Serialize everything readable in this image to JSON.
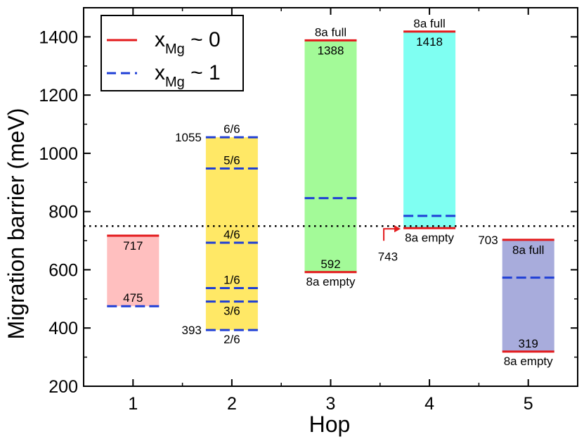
{
  "chart_data": {
    "type": "bar",
    "title": "",
    "xlabel": "Hop",
    "ylabel": "Migration barrier (meV)",
    "categories": [
      "1",
      "2",
      "3",
      "4",
      "5"
    ],
    "xlim": [
      0.5,
      5.5
    ],
    "ylim": [
      200,
      1500
    ],
    "yticks": [
      200,
      400,
      600,
      800,
      1000,
      1200,
      1400
    ],
    "reference_line": 750,
    "colors": {
      "x0_line": "#e31a1c",
      "x1_line": "#1f3fd6",
      "hop1": "#ffbfbf",
      "hop2": "#ffe866",
      "hop3": "#a3fa98",
      "hop4": "#7ffff2",
      "hop5": "#a8acdc"
    },
    "legend": {
      "position": "top-left",
      "entries": [
        {
          "label": "x",
          "sub": "Mg",
          "suffix": " ~ 0",
          "style": "solid"
        },
        {
          "label": "x",
          "sub": "Mg",
          "suffix": " ~ 1",
          "style": "dashed"
        }
      ]
    },
    "ranges": [
      {
        "hop": 1,
        "low": 475,
        "high": 717,
        "fill_key": "hop1"
      },
      {
        "hop": 2,
        "low": 393,
        "high": 1055,
        "fill_key": "hop2"
      },
      {
        "hop": 3,
        "low": 592,
        "high": 1388,
        "fill_key": "hop3"
      },
      {
        "hop": 4,
        "low": 743,
        "high": 1418,
        "fill_key": "hop4"
      },
      {
        "hop": 5,
        "low": 319,
        "high": 703,
        "fill_key": "hop5"
      }
    ],
    "series": [
      {
        "name": "x_Mg ~ 0",
        "style": "solid",
        "points": [
          {
            "hop": 1,
            "value": 717
          },
          {
            "hop": 3,
            "value": 1388
          },
          {
            "hop": 3,
            "value": 592
          },
          {
            "hop": 4,
            "value": 1418
          },
          {
            "hop": 4,
            "value": 743
          },
          {
            "hop": 5,
            "value": 703
          },
          {
            "hop": 5,
            "value": 319
          }
        ]
      },
      {
        "name": "x_Mg ~ 1",
        "style": "dashed",
        "points": [
          {
            "hop": 1,
            "value": 475
          },
          {
            "hop": 2,
            "value": 1055
          },
          {
            "hop": 2,
            "value": 948
          },
          {
            "hop": 2,
            "value": 693
          },
          {
            "hop": 2,
            "value": 537
          },
          {
            "hop": 2,
            "value": 491
          },
          {
            "hop": 2,
            "value": 393
          },
          {
            "hop": 3,
            "value": 846
          },
          {
            "hop": 4,
            "value": 785
          },
          {
            "hop": 5,
            "value": 573
          }
        ]
      }
    ],
    "annotations": [
      {
        "text": "717",
        "hop": 1,
        "value": 717,
        "align": "inside-below"
      },
      {
        "text": "475",
        "hop": 1,
        "value": 475,
        "align": "inside-above"
      },
      {
        "text": "1055",
        "hop": 2,
        "value": 1055,
        "align": "left"
      },
      {
        "text": "393",
        "hop": 2,
        "value": 393,
        "align": "left"
      },
      {
        "text": "6/6",
        "hop": 2,
        "value": 1055,
        "align": "above"
      },
      {
        "text": "5/6",
        "hop": 2,
        "value": 948,
        "align": "above"
      },
      {
        "text": "4/6",
        "hop": 2,
        "value": 693,
        "align": "above"
      },
      {
        "text": "1/6",
        "hop": 2,
        "value": 537,
        "align": "above"
      },
      {
        "text": "3/6",
        "hop": 2,
        "value": 491,
        "align": "below"
      },
      {
        "text": "2/6",
        "hop": 2,
        "value": 393,
        "align": "below"
      },
      {
        "text": "8a full",
        "hop": 3,
        "value": 1388,
        "align": "above"
      },
      {
        "text": "1388",
        "hop": 3,
        "value": 1388,
        "align": "inside-below"
      },
      {
        "text": "592",
        "hop": 3,
        "value": 592,
        "align": "inside-above"
      },
      {
        "text": "8a empty",
        "hop": 3,
        "value": 592,
        "align": "below"
      },
      {
        "text": "8a full",
        "hop": 4,
        "value": 1418,
        "align": "above"
      },
      {
        "text": "1418",
        "hop": 4,
        "value": 1418,
        "align": "inside-below"
      },
      {
        "text": "8a empty",
        "hop": 4,
        "value": 743,
        "align": "below"
      },
      {
        "text": "743",
        "hop": 4,
        "value": 743,
        "align": "arrow-left"
      },
      {
        "text": "703",
        "hop": 5,
        "value": 703,
        "align": "left"
      },
      {
        "text": "8a full",
        "hop": 5,
        "value": 703,
        "align": "inside-below"
      },
      {
        "text": "319",
        "hop": 5,
        "value": 319,
        "align": "inside-above"
      },
      {
        "text": "8a empty",
        "hop": 5,
        "value": 319,
        "align": "below"
      }
    ]
  }
}
